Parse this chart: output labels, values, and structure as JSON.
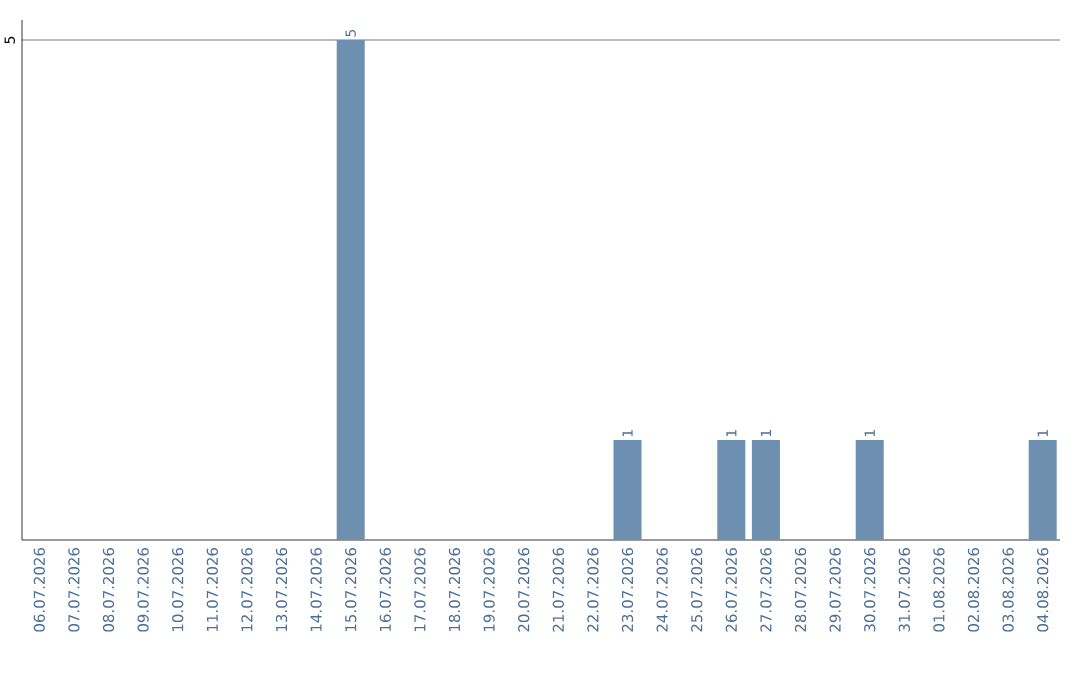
{
  "chart_data": {
    "type": "bar",
    "categories": [
      "06.07.2026",
      "07.07.2026",
      "08.07.2026",
      "09.07.2026",
      "10.07.2026",
      "11.07.2026",
      "12.07.2026",
      "13.07.2026",
      "14.07.2026",
      "15.07.2026",
      "16.07.2026",
      "17.07.2026",
      "18.07.2026",
      "19.07.2026",
      "20.07.2026",
      "21.07.2026",
      "22.07.2026",
      "23.07.2026",
      "24.07.2026",
      "25.07.2026",
      "26.07.2026",
      "27.07.2026",
      "28.07.2026",
      "29.07.2026",
      "30.07.2026",
      "31.07.2026",
      "01.08.2026",
      "02.08.2026",
      "03.08.2026",
      "04.08.2026"
    ],
    "values": [
      0,
      0,
      0,
      0,
      0,
      0,
      0,
      0,
      0,
      5,
      0,
      0,
      0,
      0,
      0,
      0,
      0,
      1,
      0,
      0,
      1,
      1,
      0,
      0,
      1,
      0,
      0,
      0,
      0,
      1
    ],
    "value_labels": [
      null,
      null,
      null,
      null,
      null,
      null,
      null,
      null,
      null,
      "5",
      null,
      null,
      null,
      null,
      null,
      null,
      null,
      "1",
      null,
      null,
      "1",
      "1",
      null,
      null,
      "1",
      null,
      null,
      null,
      null,
      "1"
    ],
    "color": "#6d8fb0",
    "ylim": [
      0,
      5.2
    ],
    "yticks": [
      5
    ],
    "grid": "y"
  }
}
